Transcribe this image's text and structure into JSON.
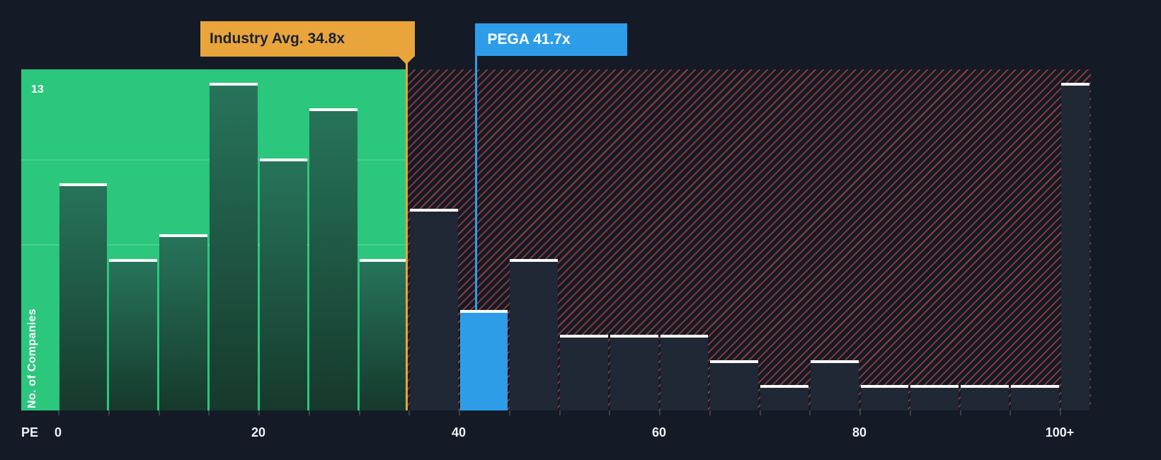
{
  "chart_data": {
    "type": "bar",
    "xlabel": "PE",
    "ylabel": "No. of Companies",
    "y_max_label": "13",
    "ylim": [
      0,
      13
    ],
    "bin_width": 5,
    "x_ticks": [
      {
        "label": "0",
        "value": 0
      },
      {
        "label": "20",
        "value": 20
      },
      {
        "label": "40",
        "value": 40
      },
      {
        "label": "60",
        "value": 60
      },
      {
        "label": "80",
        "value": 80
      },
      {
        "label": "100+",
        "value": 100
      }
    ],
    "bars": [
      {
        "start": 0,
        "value": 9
      },
      {
        "start": 5,
        "value": 6
      },
      {
        "start": 10,
        "value": 7
      },
      {
        "start": 15,
        "value": 13
      },
      {
        "start": 20,
        "value": 10
      },
      {
        "start": 25,
        "value": 12
      },
      {
        "start": 30,
        "value": 6
      },
      {
        "start": 35,
        "value": 8
      },
      {
        "start": 40,
        "value": 4
      },
      {
        "start": 45,
        "value": 6
      },
      {
        "start": 50,
        "value": 3
      },
      {
        "start": 55,
        "value": 3
      },
      {
        "start": 60,
        "value": 3
      },
      {
        "start": 65,
        "value": 2
      },
      {
        "start": 70,
        "value": 1
      },
      {
        "start": 75,
        "value": 2
      },
      {
        "start": 80,
        "value": 1
      },
      {
        "start": 85,
        "value": 1
      },
      {
        "start": 90,
        "value": 1
      },
      {
        "start": 95,
        "value": 1
      },
      {
        "start": 100,
        "value": 13,
        "overflow": true
      }
    ],
    "industry_avg": {
      "label": "Industry Avg. 34.8x",
      "value": 34.8
    },
    "company": {
      "label": "PEGA 41.7x",
      "value": 41.7,
      "bar_start": 40
    },
    "zones": {
      "in_range_end": 34.8
    },
    "legend_position": "none",
    "grid": "partial-horizontal"
  },
  "colors": {
    "background": "#141B26",
    "in_range_green": "#2BC77C",
    "bar_in_range_top": "#27745A",
    "bar_in_range_bottom": "#16392C",
    "bar_out_range": "#202836",
    "bar_cap": "#FAFBFC",
    "company_blue": "#2E9DE9",
    "industry_amber": "#E9A43B",
    "hatch_red": "#E0504C",
    "text_light": "#EFF3F6",
    "callout_text_dark": "#1A2230"
  }
}
